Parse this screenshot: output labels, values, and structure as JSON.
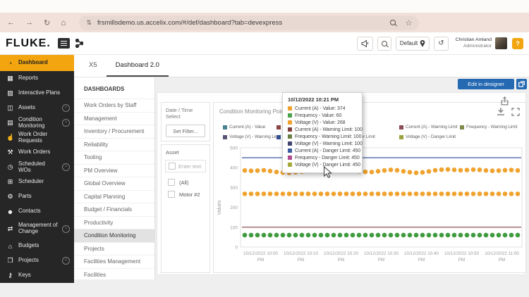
{
  "browser": {
    "url": "frsmillsdemo.us.accelix.com/#/def/dashboard?tab=devexpress"
  },
  "header": {
    "logo": "FLUKE.",
    "location_label": "Default",
    "user_name": "Christian Amland",
    "user_role": "Administrator",
    "help_label": "?"
  },
  "sidebar": {
    "items": [
      {
        "label": "Dashboard",
        "icon": "dashboard",
        "glyph": "◔",
        "active": true,
        "expandable": false
      },
      {
        "label": "Reports",
        "icon": "reports",
        "glyph": "▦",
        "active": false,
        "expandable": false
      },
      {
        "label": "Interactive Plans",
        "icon": "interactive-plans",
        "glyph": "▨",
        "active": false,
        "expandable": false
      },
      {
        "label": "Assets",
        "icon": "assets",
        "glyph": "◫",
        "active": false,
        "expandable": true
      },
      {
        "label": "Condition Monitoring",
        "icon": "condition-monitoring",
        "glyph": "▤",
        "active": false,
        "expandable": true
      },
      {
        "label": "Work Order Requests",
        "icon": "work-order-requests",
        "glyph": "☝",
        "active": false,
        "expandable": false
      },
      {
        "label": "Work Orders",
        "icon": "work-orders",
        "glyph": "⚒",
        "active": false,
        "expandable": false
      },
      {
        "label": "Scheduled WOs",
        "icon": "scheduled-wos",
        "glyph": "◷",
        "active": false,
        "expandable": true
      },
      {
        "label": "Scheduler",
        "icon": "scheduler",
        "glyph": "⊞",
        "active": false,
        "expandable": false
      },
      {
        "label": "Parts",
        "icon": "parts",
        "glyph": "⚙",
        "active": false,
        "expandable": false
      },
      {
        "label": "Contacts",
        "icon": "contacts",
        "glyph": "☻",
        "active": false,
        "expandable": false
      },
      {
        "label": "Management of Change",
        "icon": "management-of-change",
        "glyph": "⇄",
        "active": false,
        "expandable": true,
        "tall": true
      },
      {
        "label": "Budgets",
        "icon": "budgets",
        "glyph": "⌂",
        "active": false,
        "expandable": false
      },
      {
        "label": "Projects",
        "icon": "projects",
        "glyph": "❒",
        "active": false,
        "expandable": true
      },
      {
        "label": "Keys",
        "icon": "keys",
        "glyph": "⚷",
        "active": false,
        "expandable": false
      }
    ]
  },
  "tabs": {
    "items": [
      {
        "label": "X5",
        "active": false
      },
      {
        "label": "Dashboard 2.0",
        "active": true
      }
    ]
  },
  "dashboards_panel": {
    "title": "DASHBOARDS",
    "items": [
      {
        "label": "Work Orders by Staff",
        "selected": false
      },
      {
        "label": "Management",
        "selected": false
      },
      {
        "label": "Inventory / Procurement",
        "selected": false
      },
      {
        "label": "Reliability",
        "selected": false
      },
      {
        "label": "Tooling",
        "selected": false
      },
      {
        "label": "PM Overview",
        "selected": false
      },
      {
        "label": "Global Overview",
        "selected": false
      },
      {
        "label": "Capital Planning",
        "selected": false
      },
      {
        "label": "Budget / Financials",
        "selected": false
      },
      {
        "label": "Productivity",
        "selected": false
      },
      {
        "label": "Condition Monitoring",
        "selected": true
      },
      {
        "label": "Projects",
        "selected": false
      },
      {
        "label": "Facilities Management",
        "selected": false
      },
      {
        "label": "Facilities",
        "selected": false
      }
    ]
  },
  "toolbar": {
    "edit_button": "Edit in designer"
  },
  "filter_panel": {
    "datetime_title": "Date / Time Select",
    "set_filter_button": "Set Filter...",
    "asset_title": "Asset",
    "search_placeholder": "Enter text to ...",
    "options": [
      {
        "label": "(All)",
        "checked": false
      },
      {
        "label": "Motor #2",
        "checked": false
      }
    ]
  },
  "chart_card": {
    "title": "Condition Monitoring Points - Moto",
    "ylabel": "Values"
  },
  "legend": {
    "items": [
      {
        "row": 0,
        "col": 0,
        "label": "Current (A) - Value",
        "color": "#47818f"
      },
      {
        "row": 0,
        "col": 1,
        "label": "Frequency - Value",
        "color": "#8e4444"
      },
      {
        "row": 0,
        "col": 2,
        "label": "Voltage (V) - Value",
        "color": "#bf8a3e"
      },
      {
        "row": 0,
        "col": 3,
        "label": "Current (A) - Warning Limit",
        "color": "#8c4a52"
      },
      {
        "row": 0,
        "col": 4,
        "label": "Frequency - Warning Limit",
        "color": "#7c8a4a"
      },
      {
        "row": 1,
        "col": 0,
        "label": "Voltage (V) - Warning Limit",
        "color": "#5c5377"
      },
      {
        "row": 1,
        "col": 1,
        "label": "Current (A) - Danger Limit",
        "color": "#31508f"
      },
      {
        "row": 1,
        "col": 2,
        "label": "Frequency - Danger Limit",
        "color": "#a8527e"
      },
      {
        "row": 1,
        "col": 3,
        "label": "Voltage (V) - Danger Limit",
        "color": "#9aa23e"
      }
    ]
  },
  "tooltip": {
    "title": "10/12/2022 10:21 PM",
    "rows": [
      {
        "label": "Current (A) - Value: 374",
        "color": "#f0a22e"
      },
      {
        "label": "Frequency - Value: 60",
        "color": "#4ba04b"
      },
      {
        "label": "Voltage (V) - Value: 268",
        "color": "#f0a22e"
      },
      {
        "label": "Current (A) - Warning Limit: 100",
        "color": "#7e3d3d"
      },
      {
        "label": "Frequency - Warning Limit: 100",
        "color": "#6b7d46"
      },
      {
        "label": "Voltage (V) - Warning Limit: 100",
        "color": "#43436e"
      },
      {
        "label": "Current (A) - Danger Limit: 450",
        "color": "#3b5aa0"
      },
      {
        "label": "Frequency - Danger Limit: 450",
        "color": "#b0498c"
      },
      {
        "label": "Voltage (V) - Danger Limit: 450",
        "color": "#a3a937"
      }
    ]
  },
  "chart_data": {
    "type": "scatter",
    "title": "Condition Monitoring Points - Moto",
    "ylabel": "Values",
    "ylim": [
      0,
      500
    ],
    "yticks": [
      0,
      100,
      200,
      300,
      400,
      500
    ],
    "x_tick_labels": [
      "10/12/2022 10:00 PM",
      "10/12/2022 10:10 PM",
      "10/12/2022 10:20 PM",
      "10/12/2022 10:30 PM",
      "10/12/2022 10:40 PM",
      "10/12/2022 10:50 PM",
      "10/12/2022 11:00 PM"
    ],
    "series": [
      {
        "name": "Current (A) - Value",
        "type": "dots",
        "color": "#f0a22e",
        "values": [
          386,
          384,
          385,
          387,
          383,
          378,
          375,
          374,
          377,
          380,
          383,
          384,
          383,
          385,
          388,
          390,
          389,
          386,
          382,
          379,
          378,
          382,
          386,
          389,
          387,
          382,
          377,
          374,
          376,
          381,
          387,
          390,
          391,
          389,
          387,
          388,
          390,
          389,
          386,
          384,
          385,
          387,
          388,
          386
        ]
      },
      {
        "name": "Voltage (V) - Value",
        "type": "dots",
        "color": "#f0a22e",
        "value": 268,
        "count": 44
      },
      {
        "name": "Frequency - Value",
        "type": "dots",
        "color": "#3f9b3f",
        "value": 60,
        "count": 44
      },
      {
        "name": "Danger Limit (Current / Frequency / Voltage)",
        "type": "limit",
        "color": "#3b5aa0",
        "value": 450
      },
      {
        "name": "Warning Limit (Current / Frequency / Voltage)",
        "type": "limit",
        "color": "#7e3d3d",
        "value": 100
      }
    ]
  }
}
